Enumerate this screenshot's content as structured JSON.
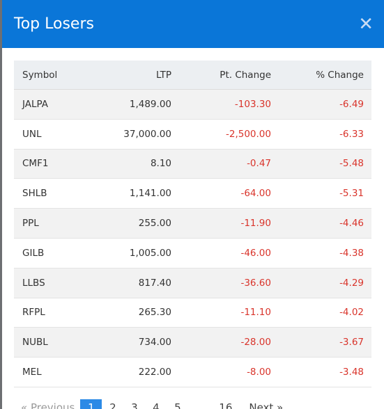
{
  "modal": {
    "title": "Top Losers",
    "close_icon": "close-icon"
  },
  "table": {
    "headers": [
      "Symbol",
      "LTP",
      "Pt. Change",
      "% Change"
    ],
    "rows": [
      {
        "symbol": "JALPA",
        "ltp": "1,489.00",
        "pt_change": "-103.30",
        "pct_change": "-6.49"
      },
      {
        "symbol": "UNL",
        "ltp": "37,000.00",
        "pt_change": "-2,500.00",
        "pct_change": "-6.33"
      },
      {
        "symbol": "CMF1",
        "ltp": "8.10",
        "pt_change": "-0.47",
        "pct_change": "-5.48"
      },
      {
        "symbol": "SHLB",
        "ltp": "1,141.00",
        "pt_change": "-64.00",
        "pct_change": "-5.31"
      },
      {
        "symbol": "PPL",
        "ltp": "255.00",
        "pt_change": "-11.90",
        "pct_change": "-4.46"
      },
      {
        "symbol": "GILB",
        "ltp": "1,005.00",
        "pt_change": "-46.00",
        "pct_change": "-4.38"
      },
      {
        "symbol": "LLBS",
        "ltp": "817.40",
        "pt_change": "-36.60",
        "pct_change": "-4.29"
      },
      {
        "symbol": "RFPL",
        "ltp": "265.30",
        "pt_change": "-11.10",
        "pct_change": "-4.02"
      },
      {
        "symbol": "NUBL",
        "ltp": "734.00",
        "pt_change": "-28.00",
        "pct_change": "-3.67"
      },
      {
        "symbol": "MEL",
        "ltp": "222.00",
        "pt_change": "-8.00",
        "pct_change": "-3.48"
      }
    ]
  },
  "pagination": {
    "prev": "« Previous",
    "pages": [
      "1",
      "2",
      "3",
      "4",
      "5",
      "…",
      "16"
    ],
    "active": "1",
    "next": "Next »"
  },
  "colors": {
    "header_blue": "#0a76d8",
    "negative_red": "#d9342b",
    "active_page": "#2c8ae6"
  }
}
